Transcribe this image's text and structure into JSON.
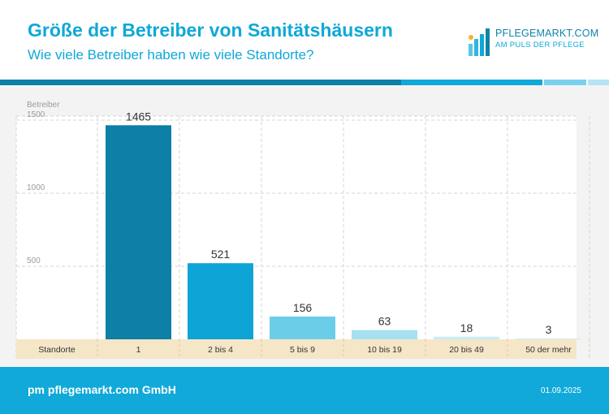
{
  "header": {
    "title": "Größe der Betreiber von Sanitätshäusern",
    "subtitle": "Wie viele Betreiber haben wie viele Standorte?"
  },
  "logo": {
    "name": "PFLEGEMARKT.COM",
    "tagline": "AM PULS DER PFLEGE",
    "icon": "bar-logo-icon"
  },
  "footer": {
    "company": "pm pflegemarkt.com GmbH",
    "date": "01.09.2025"
  },
  "colors": {
    "brand": "#10a9d9",
    "bar_1": "#0e7fa6",
    "bar_2": "#0ea5d6",
    "bar_3": "#6ccde8",
    "bar_4": "#a6e0f2",
    "bar_5": "#c9ecf7",
    "axis_band": "#f5e6c8"
  },
  "chart_data": {
    "type": "bar",
    "ylabel": "Betreiber",
    "xlabel": "Standorte",
    "categories": [
      "1",
      "2 bis 4",
      "5 bis 9",
      "10 bis 19",
      "20 bis 49",
      "50 der mehr"
    ],
    "values": [
      1465,
      521,
      156,
      63,
      18,
      3
    ],
    "data_labels": [
      "1465",
      "521",
      "156",
      "63",
      "18",
      "3"
    ],
    "yticks": [
      500,
      1000,
      1500
    ],
    "ytick_labels": [
      "500",
      "1000",
      "1500"
    ],
    "ylim": [
      0,
      1500
    ],
    "grid": true
  }
}
